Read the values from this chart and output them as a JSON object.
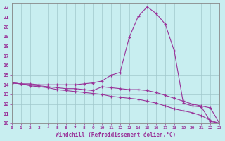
{
  "xlabel": "Windchill (Refroidissement éolien,°C)",
  "line_color": "#993399",
  "bg_color": "#c8eef0",
  "grid_color": "#a0c8cc",
  "xlim": [
    0,
    23
  ],
  "ylim": [
    10,
    22.5
  ],
  "xticks": [
    0,
    1,
    2,
    3,
    4,
    5,
    6,
    7,
    8,
    9,
    10,
    11,
    12,
    13,
    14,
    15,
    16,
    17,
    18,
    19,
    20,
    21,
    22,
    23
  ],
  "yticks": [
    10,
    11,
    12,
    13,
    14,
    15,
    16,
    17,
    18,
    19,
    20,
    21,
    22
  ],
  "curve1_x": [
    0,
    1,
    2,
    3,
    4,
    5,
    6,
    7,
    8,
    9,
    10,
    11,
    12,
    13,
    14,
    15,
    16,
    17,
    18,
    19,
    20,
    21,
    22,
    23
  ],
  "curve1_y": [
    14.2,
    14.1,
    13.9,
    13.8,
    13.7,
    13.5,
    13.4,
    13.3,
    13.2,
    13.1,
    13.0,
    12.8,
    12.7,
    12.6,
    12.5,
    12.3,
    12.1,
    11.8,
    11.5,
    11.3,
    11.1,
    10.8,
    10.3,
    10.0
  ],
  "curve2_x": [
    0,
    1,
    2,
    3,
    4,
    5,
    6,
    7,
    8,
    9,
    10,
    11,
    12,
    13,
    14,
    15,
    16,
    17,
    18,
    19,
    20,
    21,
    22,
    23
  ],
  "curve2_y": [
    14.2,
    14.1,
    14.1,
    14.0,
    14.0,
    14.0,
    14.0,
    14.0,
    14.1,
    14.2,
    14.4,
    15.0,
    15.3,
    18.9,
    21.1,
    22.1,
    21.4,
    20.3,
    17.5,
    12.1,
    11.8,
    11.7,
    10.2,
    10.0
  ],
  "curve3_x": [
    0,
    1,
    2,
    3,
    4,
    5,
    6,
    7,
    8,
    9,
    10,
    11,
    12,
    13,
    14,
    15,
    16,
    17,
    18,
    19,
    20,
    21,
    22,
    23
  ],
  "curve3_y": [
    14.2,
    14.1,
    14.0,
    13.9,
    13.8,
    13.7,
    13.6,
    13.6,
    13.5,
    13.4,
    13.8,
    13.7,
    13.6,
    13.5,
    13.5,
    13.4,
    13.2,
    12.9,
    12.6,
    12.3,
    12.0,
    11.8,
    11.6,
    10.0
  ]
}
